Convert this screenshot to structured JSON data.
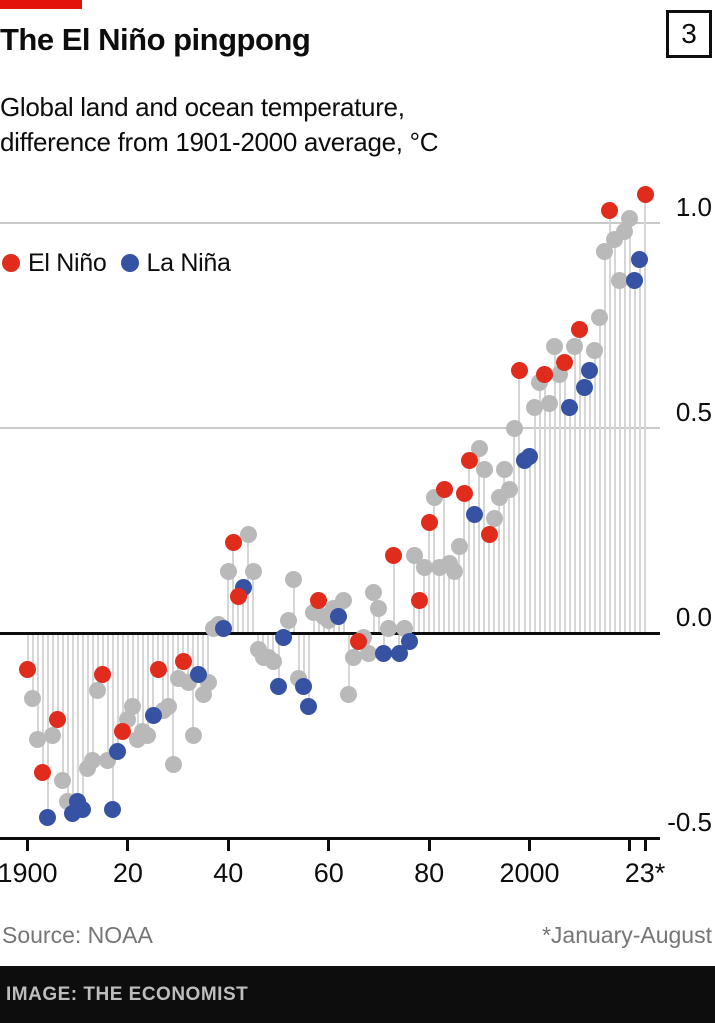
{
  "header": {
    "index_label": "3",
    "title": "The El Niño pingpong",
    "subtitle_line1": "Global land and ocean temperature,",
    "subtitle_line2": "difference from 1901-2000 average, °C"
  },
  "legend": {
    "items": [
      {
        "label": "El Niño",
        "color": "#e02b1d",
        "phase_code": "E"
      },
      {
        "label": "La Niña",
        "color": "#3552a3",
        "phase_code": "L"
      }
    ]
  },
  "colors": {
    "accent_red": "#e3120b",
    "el_nino_red": "#e02b1d",
    "la_nina_blue": "#3552a3",
    "neutral_gray": "#b9b9b9",
    "stem_gray": "#d6d6d6",
    "gridline_gray": "#c9c9c9",
    "axis_black": "#0d0d0d"
  },
  "footer": {
    "source": "Source: NOAA",
    "footnote": "*January-August",
    "credit": "IMAGE: THE ECONOMIST"
  },
  "chart_data": {
    "type": "bar",
    "subtype": "lollipop-stem",
    "title": "The El Niño pingpong",
    "subtitle": "Global land and ocean temperature, difference from 1901-2000 average, °C",
    "xlabel": "",
    "ylabel": "difference from 1901-2000 average, °C",
    "ylim": [
      -0.5,
      1.1
    ],
    "grid": "horizontal",
    "legend_position": "top-left",
    "start_year": 1900,
    "end_year": 2023,
    "last_point_note": "2023 value is January-August only",
    "y_gridlines": [
      {
        "value": 1.0,
        "label": "1.0",
        "style": "gray"
      },
      {
        "value": 0.5,
        "label": "0.5",
        "style": "gray"
      },
      {
        "value": 0.0,
        "label": "0.0",
        "style": "black-zero"
      },
      {
        "value": -0.5,
        "label": "-0.5",
        "style": "black-axis"
      }
    ],
    "x_ticks": [
      {
        "year": 1900,
        "label": "1900"
      },
      {
        "year": 1920,
        "label": "20"
      },
      {
        "year": 1940,
        "label": "40"
      },
      {
        "year": 1960,
        "label": "60"
      },
      {
        "year": 1980,
        "label": "80"
      },
      {
        "year": 2000,
        "label": "2000"
      },
      {
        "year": 2020,
        "label": ""
      },
      {
        "year": 2023,
        "label": "23*"
      }
    ],
    "phase_legend": {
      "E": "El Niño",
      "L": "La Niña",
      "N": "neutral"
    },
    "values": [
      -0.09,
      -0.16,
      -0.26,
      -0.34,
      -0.45,
      -0.25,
      -0.21,
      -0.36,
      -0.41,
      -0.44,
      -0.41,
      -0.43,
      -0.33,
      -0.31,
      -0.14,
      -0.1,
      -0.31,
      -0.43,
      -0.29,
      -0.24,
      -0.21,
      -0.18,
      -0.26,
      -0.24,
      -0.25,
      -0.2,
      -0.09,
      -0.19,
      -0.18,
      -0.32,
      -0.11,
      -0.07,
      -0.12,
      -0.25,
      -0.1,
      -0.15,
      -0.12,
      0.01,
      0.02,
      0.01,
      0.15,
      0.22,
      0.09,
      0.11,
      0.24,
      0.15,
      -0.04,
      -0.06,
      -0.06,
      -0.07,
      -0.13,
      -0.01,
      0.03,
      0.13,
      -0.11,
      -0.13,
      -0.18,
      0.05,
      0.08,
      0.04,
      0.03,
      0.06,
      0.04,
      0.08,
      -0.15,
      -0.06,
      -0.02,
      -0.01,
      -0.05,
      0.1,
      0.06,
      -0.05,
      0.01,
      0.19,
      -0.05,
      0.01,
      -0.02,
      0.19,
      0.08,
      0.16,
      0.27,
      0.33,
      0.16,
      0.35,
      0.17,
      0.15,
      0.21,
      0.34,
      0.42,
      0.29,
      0.45,
      0.4,
      0.24,
      0.28,
      0.33,
      0.4,
      0.35,
      0.5,
      0.64,
      0.42,
      0.43,
      0.55,
      0.61,
      0.63,
      0.56,
      0.7,
      0.63,
      0.66,
      0.55,
      0.7,
      0.74,
      0.6,
      0.64,
      0.69,
      0.77,
      0.93,
      1.03,
      0.96,
      0.86,
      0.98,
      1.01,
      0.86,
      0.91,
      1.07
    ],
    "phase": [
      "E",
      "N",
      "N",
      "E",
      "L",
      "N",
      "E",
      "N",
      "N",
      "L",
      "L",
      "L",
      "N",
      "N",
      "N",
      "E",
      "N",
      "L",
      "L",
      "E",
      "N",
      "N",
      "N",
      "N",
      "N",
      "L",
      "E",
      "N",
      "N",
      "N",
      "N",
      "E",
      "N",
      "N",
      "L",
      "N",
      "N",
      "N",
      "N",
      "L",
      "N",
      "E",
      "E",
      "L",
      "N",
      "N",
      "N",
      "N",
      "N",
      "N",
      "L",
      "L",
      "N",
      "N",
      "N",
      "L",
      "L",
      "N",
      "E",
      "N",
      "N",
      "N",
      "L",
      "N",
      "N",
      "N",
      "E",
      "N",
      "N",
      "N",
      "N",
      "L",
      "N",
      "E",
      "L",
      "N",
      "L",
      "N",
      "E",
      "N",
      "E",
      "N",
      "N",
      "E",
      "N",
      "N",
      "N",
      "E",
      "E",
      "L",
      "N",
      "N",
      "E",
      "N",
      "N",
      "N",
      "N",
      "N",
      "E",
      "L",
      "L",
      "N",
      "N",
      "E",
      "N",
      "N",
      "N",
      "E",
      "L",
      "N",
      "E",
      "L",
      "L",
      "N",
      "N",
      "N",
      "E",
      "N",
      "N",
      "N",
      "N",
      "L",
      "L",
      "E"
    ]
  }
}
